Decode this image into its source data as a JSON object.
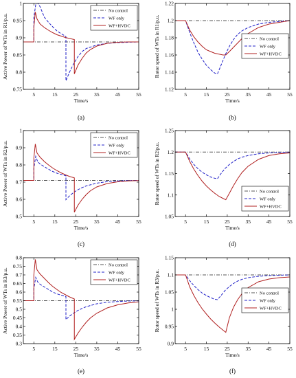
{
  "colors": {
    "no_control": "#555555",
    "wf_only": "#2020c8",
    "wf_hvdc": "#b02020"
  },
  "legend": [
    "No control",
    "WF only",
    "WF+HVDC"
  ],
  "chart_data": [
    {
      "type": "line",
      "caption": "(a)",
      "ylabel": "Active Power of WTs in R1/p.u.",
      "xlabel": "Time/s",
      "xlim": [
        0,
        55
      ],
      "ylim": [
        0.75,
        1.0
      ],
      "xticks": [
        5,
        15,
        25,
        35,
        45,
        55
      ],
      "yticks": [
        0.75,
        0.8,
        0.85,
        0.9,
        0.95,
        1.0
      ],
      "yticklabels": [
        "0.75",
        "0.8",
        "0.85",
        "0.9",
        "0.95",
        "1"
      ],
      "legend_position": "top-right",
      "series": [
        {
          "name": "No control",
          "style": "dashdot",
          "x": [
            0,
            55
          ],
          "y": [
            0.888,
            0.888
          ]
        },
        {
          "name": "WF only",
          "style": "dashed",
          "x": [
            0,
            5,
            5,
            6,
            7,
            8,
            9,
            10,
            12,
            14,
            16,
            18,
            20,
            20.3,
            20.3,
            22,
            24,
            26,
            28,
            30,
            35,
            40,
            45,
            50,
            55
          ],
          "y": [
            0.888,
            0.888,
            0.96,
            1.0,
            1.0,
            0.99,
            0.975,
            0.96,
            0.945,
            0.932,
            0.92,
            0.912,
            0.905,
            0.903,
            0.775,
            0.8,
            0.825,
            0.845,
            0.86,
            0.869,
            0.879,
            0.884,
            0.886,
            0.887,
            0.888
          ]
        },
        {
          "name": "WF+HVDC",
          "style": "solid",
          "x": [
            0,
            5,
            5,
            5.7,
            6.5,
            8,
            10,
            12,
            14,
            16,
            18,
            20,
            22,
            24.3,
            24.3,
            26,
            28,
            30,
            32,
            35,
            40,
            45,
            50,
            55
          ],
          "y": [
            0.888,
            0.888,
            0.93,
            0.975,
            0.955,
            0.94,
            0.93,
            0.922,
            0.915,
            0.909,
            0.905,
            0.901,
            0.898,
            0.895,
            0.795,
            0.82,
            0.84,
            0.856,
            0.866,
            0.876,
            0.884,
            0.887,
            0.888,
            0.888
          ]
        }
      ]
    },
    {
      "type": "line",
      "caption": "(b)",
      "ylabel": "Rotor speed of WTs in R1/p.u.",
      "xlabel": "Time/s",
      "xlim": [
        0,
        55
      ],
      "ylim": [
        1.12,
        1.22
      ],
      "xticks": [
        5,
        15,
        25,
        35,
        45,
        55
      ],
      "yticks": [
        1.12,
        1.14,
        1.16,
        1.18,
        1.2,
        1.22
      ],
      "yticklabels": [
        "1.12",
        "1.14",
        "1.16",
        "1.18",
        "1.2",
        "1.22"
      ],
      "legend_position": "center-right",
      "series": [
        {
          "name": "No control",
          "style": "dashdot",
          "x": [
            0,
            55
          ],
          "y": [
            1.2,
            1.2
          ]
        },
        {
          "name": "WF only",
          "style": "dashed",
          "x": [
            0,
            5,
            7,
            9,
            11,
            13,
            15,
            17,
            19,
            20.3,
            22,
            24,
            26,
            28,
            30,
            32,
            35,
            40,
            45,
            50,
            55
          ],
          "y": [
            1.2,
            1.2,
            1.186,
            1.174,
            1.163,
            1.155,
            1.148,
            1.143,
            1.139,
            1.138,
            1.148,
            1.16,
            1.17,
            1.178,
            1.184,
            1.188,
            1.192,
            1.196,
            1.198,
            1.199,
            1.2
          ]
        },
        {
          "name": "WF+HVDC",
          "style": "solid",
          "x": [
            0,
            5,
            7,
            9,
            11,
            13,
            15,
            17,
            19,
            21,
            23,
            24.3,
            26,
            28,
            30,
            32,
            35,
            40,
            45,
            50,
            55
          ],
          "y": [
            1.2,
            1.2,
            1.189,
            1.181,
            1.175,
            1.17,
            1.166,
            1.164,
            1.162,
            1.161,
            1.16,
            1.16,
            1.164,
            1.169,
            1.174,
            1.179,
            1.185,
            1.192,
            1.196,
            1.198,
            1.2
          ]
        }
      ]
    },
    {
      "type": "line",
      "caption": "(c)",
      "ylabel": "Active Power of WTs in R2/p.u.",
      "xlabel": "Time/s",
      "xlim": [
        0,
        55
      ],
      "ylim": [
        0.5,
        1.0
      ],
      "xticks": [
        5,
        15,
        25,
        35,
        45,
        55
      ],
      "yticks": [
        0.5,
        0.6,
        0.7,
        0.8,
        0.9,
        1.0
      ],
      "yticklabels": [
        "0.5",
        "0.6",
        "0.7",
        "0.8",
        "0.9",
        "1"
      ],
      "legend_position": "top-right",
      "series": [
        {
          "name": "No control",
          "style": "dashdot",
          "x": [
            0,
            55
          ],
          "y": [
            0.71,
            0.71
          ]
        },
        {
          "name": "WF only",
          "style": "dashed",
          "x": [
            0,
            5,
            5,
            5.9,
            6.8,
            8,
            10,
            12,
            14,
            16,
            18,
            20,
            20.3,
            20.3,
            22,
            24,
            26,
            28,
            30,
            35,
            40,
            45,
            50,
            55
          ],
          "y": [
            0.71,
            0.71,
            0.78,
            0.85,
            0.82,
            0.805,
            0.79,
            0.775,
            0.762,
            0.752,
            0.745,
            0.738,
            0.737,
            0.598,
            0.62,
            0.64,
            0.656,
            0.668,
            0.678,
            0.694,
            0.703,
            0.707,
            0.709,
            0.71
          ]
        },
        {
          "name": "WF+HVDC",
          "style": "solid",
          "x": [
            0,
            5,
            5,
            5.7,
            6.5,
            8,
            10,
            12,
            14,
            16,
            18,
            20,
            22,
            24.3,
            24.3,
            26,
            28,
            30,
            32,
            35,
            40,
            45,
            50,
            55
          ],
          "y": [
            0.71,
            0.71,
            0.84,
            0.922,
            0.87,
            0.845,
            0.82,
            0.8,
            0.782,
            0.767,
            0.754,
            0.743,
            0.733,
            0.725,
            0.525,
            0.565,
            0.6,
            0.628,
            0.65,
            0.672,
            0.692,
            0.702,
            0.707,
            0.709
          ]
        }
      ]
    },
    {
      "type": "line",
      "caption": "(d)",
      "ylabel": "Rotor speed of WTs in R2/p.u.",
      "xlabel": "Time/s",
      "xlim": [
        0,
        55
      ],
      "ylim": [
        1.05,
        1.25
      ],
      "xticks": [
        5,
        15,
        25,
        35,
        45,
        55
      ],
      "yticks": [
        1.05,
        1.1,
        1.15,
        1.2,
        1.25
      ],
      "yticklabels": [
        "1.05",
        "1.1",
        "1.15",
        "1.2",
        "1.25"
      ],
      "legend_position": "bottom-right",
      "series": [
        {
          "name": "No control",
          "style": "dashdot",
          "x": [
            0,
            55
          ],
          "y": [
            1.2,
            1.2
          ]
        },
        {
          "name": "WF only",
          "style": "dashed",
          "x": [
            0,
            5,
            7,
            9,
            11,
            13,
            15,
            17,
            19,
            20.3,
            22,
            24,
            26,
            28,
            30,
            32,
            35,
            40,
            45,
            50,
            55
          ],
          "y": [
            1.2,
            1.2,
            1.184,
            1.171,
            1.161,
            1.153,
            1.147,
            1.142,
            1.139,
            1.138,
            1.15,
            1.162,
            1.171,
            1.178,
            1.184,
            1.188,
            1.192,
            1.196,
            1.198,
            1.199,
            1.2
          ]
        },
        {
          "name": "WF+HVDC",
          "style": "solid",
          "x": [
            0,
            5,
            7,
            9,
            11,
            13,
            15,
            17,
            19,
            21,
            23,
            24.3,
            26,
            28,
            30,
            32,
            35,
            40,
            45,
            50,
            55
          ],
          "y": [
            1.2,
            1.2,
            1.178,
            1.16,
            1.145,
            1.132,
            1.121,
            1.112,
            1.104,
            1.097,
            1.092,
            1.089,
            1.104,
            1.122,
            1.138,
            1.152,
            1.167,
            1.183,
            1.192,
            1.196,
            1.198
          ]
        }
      ]
    },
    {
      "type": "line",
      "caption": "(e)",
      "ylabel": "Active Power of WTs in R3/p.u.",
      "xlabel": "Time/s",
      "xlim": [
        0,
        55
      ],
      "ylim": [
        0.3,
        0.8
      ],
      "xticks": [
        5,
        15,
        25,
        35,
        45,
        55
      ],
      "yticks": [
        0.3,
        0.35,
        0.4,
        0.45,
        0.5,
        0.55,
        0.6,
        0.65,
        0.7,
        0.75,
        0.8
      ],
      "yticklabels": [
        "0.3",
        "0.35",
        "0.4",
        "0.45",
        "0.5",
        "0.55",
        "0.6",
        "0.65",
        "0.7",
        "0.75",
        "0.8"
      ],
      "legend_position": "top-right",
      "series": [
        {
          "name": "No control",
          "style": "dashdot",
          "x": [
            0,
            55
          ],
          "y": [
            0.55,
            0.55
          ]
        },
        {
          "name": "WF only",
          "style": "dashed",
          "x": [
            0,
            5,
            5,
            5.9,
            6.8,
            8,
            10,
            12,
            14,
            16,
            18,
            20,
            20.3,
            20.3,
            22,
            24,
            26,
            28,
            30,
            35,
            40,
            45,
            50,
            55
          ],
          "y": [
            0.55,
            0.55,
            0.62,
            0.685,
            0.66,
            0.645,
            0.63,
            0.615,
            0.6,
            0.59,
            0.582,
            0.575,
            0.574,
            0.44,
            0.46,
            0.478,
            0.493,
            0.505,
            0.515,
            0.532,
            0.541,
            0.545,
            0.548,
            0.549
          ]
        },
        {
          "name": "WF+HVDC",
          "style": "solid",
          "x": [
            0,
            5,
            5,
            5.7,
            6.5,
            8,
            10,
            12,
            14,
            16,
            18,
            20,
            22,
            24.3,
            24.3,
            26,
            28,
            30,
            32,
            35,
            40,
            45,
            50,
            55
          ],
          "y": [
            0.55,
            0.55,
            0.7,
            0.79,
            0.73,
            0.705,
            0.68,
            0.655,
            0.633,
            0.615,
            0.598,
            0.585,
            0.572,
            0.56,
            0.325,
            0.36,
            0.395,
            0.425,
            0.45,
            0.477,
            0.508,
            0.526,
            0.537,
            0.543
          ]
        }
      ]
    },
    {
      "type": "line",
      "caption": "(f)",
      "ylabel": "Rotor speed of WTs in R3/p.u.",
      "xlabel": "Time/s",
      "xlim": [
        0,
        55
      ],
      "ylim": [
        0.9,
        1.15
      ],
      "xticks": [
        5,
        15,
        25,
        35,
        45,
        55
      ],
      "yticks": [
        0.9,
        0.95,
        1.0,
        1.05,
        1.1,
        1.15
      ],
      "yticklabels": [
        "0.9",
        "0.95",
        "1",
        "1.05",
        "1.1",
        "1.15"
      ],
      "legend_position": "center-right",
      "series": [
        {
          "name": "No control",
          "style": "dashdot",
          "x": [
            0,
            55
          ],
          "y": [
            1.1,
            1.1
          ]
        },
        {
          "name": "WF only",
          "style": "dashed",
          "x": [
            0,
            5,
            7,
            9,
            11,
            13,
            15,
            17,
            19,
            20.3,
            22,
            24,
            26,
            28,
            30,
            32,
            35,
            40,
            45,
            50,
            55
          ],
          "y": [
            1.1,
            1.1,
            1.083,
            1.069,
            1.057,
            1.047,
            1.04,
            1.034,
            1.029,
            1.028,
            1.04,
            1.055,
            1.066,
            1.075,
            1.082,
            1.087,
            1.092,
            1.096,
            1.098,
            1.099,
            1.1
          ]
        },
        {
          "name": "WF+HVDC",
          "style": "solid",
          "x": [
            0,
            5,
            7,
            9,
            11,
            13,
            15,
            17,
            19,
            21,
            23,
            24.3,
            26,
            28,
            30,
            32,
            35,
            40,
            45,
            50,
            55
          ],
          "y": [
            1.1,
            1.1,
            1.065,
            1.04,
            1.019,
            1.001,
            0.986,
            0.972,
            0.96,
            0.949,
            0.939,
            0.933,
            0.975,
            1.006,
            1.028,
            1.045,
            1.063,
            1.08,
            1.088,
            1.092,
            1.094
          ]
        }
      ]
    }
  ]
}
